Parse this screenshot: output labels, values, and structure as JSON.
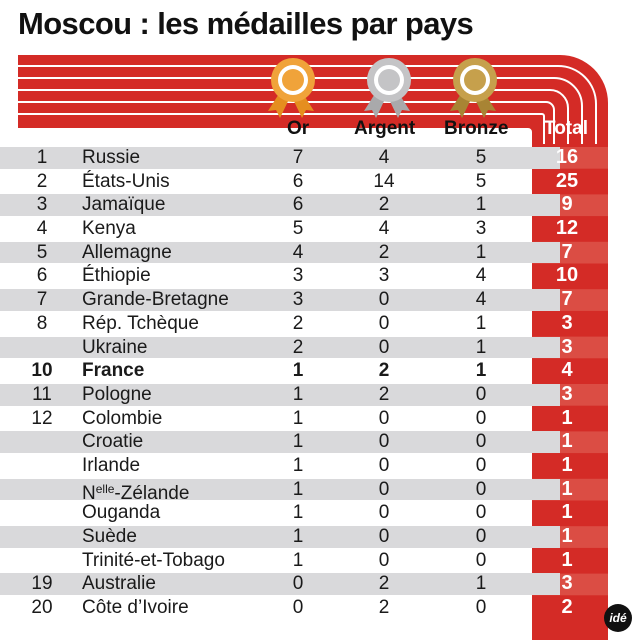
{
  "title": "Moscou : les médailles par pays",
  "colors": {
    "red": "#d42b26",
    "red_light": "#e06a5d",
    "gold": "#f0a33a",
    "silver": "#c4c4c6",
    "bronze": "#c6a04c",
    "band": "#d9d9db"
  },
  "icons": {
    "gold": "gold-medal-rosette-icon",
    "silver": "silver-medal-rosette-icon",
    "bronze": "bronze-medal-rosette-icon",
    "logo": "ide-logo"
  },
  "logo_text": "idé",
  "chart_data": {
    "type": "table",
    "columns": [
      "Or",
      "Argent",
      "Bronze",
      "Total"
    ],
    "rows": [
      {
        "rank": "1",
        "country": "Russie",
        "gold": 7,
        "silver": 4,
        "bronze": 5,
        "total": 16
      },
      {
        "rank": "2",
        "country": "États-Unis",
        "gold": 6,
        "silver": 14,
        "bronze": 5,
        "total": 25
      },
      {
        "rank": "3",
        "country": "Jamaïque",
        "gold": 6,
        "silver": 2,
        "bronze": 1,
        "total": 9
      },
      {
        "rank": "4",
        "country": "Kenya",
        "gold": 5,
        "silver": 4,
        "bronze": 3,
        "total": 12
      },
      {
        "rank": "5",
        "country": "Allemagne",
        "gold": 4,
        "silver": 2,
        "bronze": 1,
        "total": 7
      },
      {
        "rank": "6",
        "country": "Éthiopie",
        "gold": 3,
        "silver": 3,
        "bronze": 4,
        "total": 10
      },
      {
        "rank": "7",
        "country": "Grande-Bretagne",
        "gold": 3,
        "silver": 0,
        "bronze": 4,
        "total": 7
      },
      {
        "rank": "8",
        "country": "Rép. Tchèque",
        "gold": 2,
        "silver": 0,
        "bronze": 1,
        "total": 3
      },
      {
        "rank": "",
        "country": "Ukraine",
        "gold": 2,
        "silver": 0,
        "bronze": 1,
        "total": 3
      },
      {
        "rank": "10",
        "country": "France",
        "gold": 1,
        "silver": 2,
        "bronze": 1,
        "total": 4,
        "highlight": true
      },
      {
        "rank": "11",
        "country": "Pologne",
        "gold": 1,
        "silver": 2,
        "bronze": 0,
        "total": 3
      },
      {
        "rank": "12",
        "country": "Colombie",
        "gold": 1,
        "silver": 0,
        "bronze": 0,
        "total": 1
      },
      {
        "rank": "",
        "country": "Croatie",
        "gold": 1,
        "silver": 0,
        "bronze": 0,
        "total": 1
      },
      {
        "rank": "",
        "country": "Irlande",
        "gold": 1,
        "silver": 0,
        "bronze": 0,
        "total": 1
      },
      {
        "rank": "",
        "country": "N",
        "country_sup": "elle",
        "country_rest": "-Zélande",
        "gold": 1,
        "silver": 0,
        "bronze": 0,
        "total": 1
      },
      {
        "rank": "",
        "country": "Ouganda",
        "gold": 1,
        "silver": 0,
        "bronze": 0,
        "total": 1
      },
      {
        "rank": "",
        "country": "Suède",
        "gold": 1,
        "silver": 0,
        "bronze": 0,
        "total": 1
      },
      {
        "rank": "",
        "country": "Trinité-et-Tobago",
        "gold": 1,
        "silver": 0,
        "bronze": 0,
        "total": 1
      },
      {
        "rank": "19",
        "country": "Australie",
        "gold": 0,
        "silver": 2,
        "bronze": 1,
        "total": 3
      },
      {
        "rank": "20",
        "country": "Côte d’Ivoire",
        "gold": 0,
        "silver": 2,
        "bronze": 0,
        "total": 2
      }
    ]
  }
}
